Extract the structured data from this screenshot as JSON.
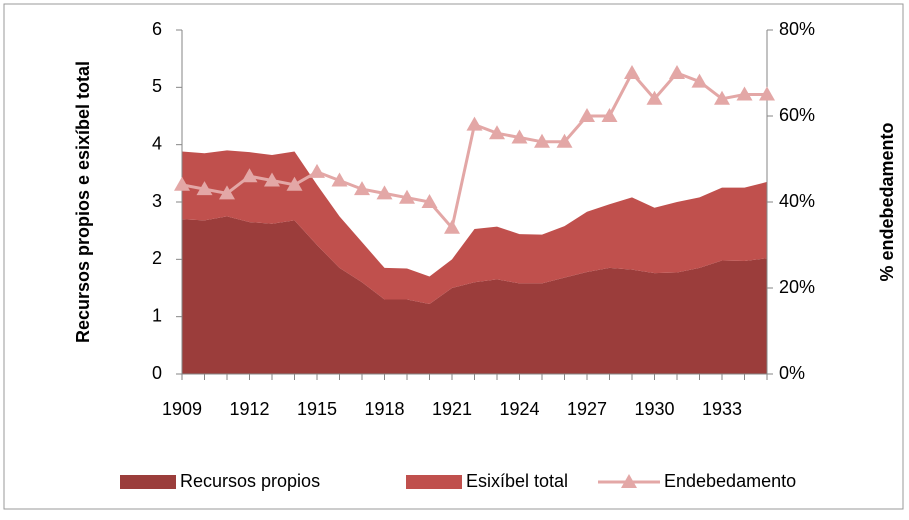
{
  "chart_data": {
    "type": "stacked_area_line",
    "x": [
      1909,
      1910,
      1911,
      1912,
      1913,
      1914,
      1915,
      1916,
      1917,
      1918,
      1919,
      1920,
      1921,
      1922,
      1923,
      1924,
      1925,
      1926,
      1927,
      1928,
      1929,
      1930,
      1931,
      1932,
      1933,
      1934,
      1935
    ],
    "xlim": [
      1909,
      1935
    ],
    "xticks": [
      1909,
      1912,
      1915,
      1918,
      1921,
      1924,
      1927,
      1930,
      1933
    ],
    "ylabel": "Recursos propios e esixíbel total",
    "y2label": "% endebedamento",
    "ylim": [
      0,
      6
    ],
    "yticks": [
      0,
      1,
      2,
      3,
      4,
      5,
      6
    ],
    "y2lim": [
      0,
      80
    ],
    "y2ticks": [
      {
        "value": 0,
        "label": "0%"
      },
      {
        "value": 20,
        "label": "20%"
      },
      {
        "value": 40,
        "label": "40%"
      },
      {
        "value": 60,
        "label": "60%"
      },
      {
        "value": 80,
        "label": "80%"
      }
    ],
    "legend": "bottom",
    "series": [
      {
        "name": "Recursos propios",
        "color": "#9b3d3b",
        "values": [
          2.7,
          2.68,
          2.75,
          2.65,
          2.62,
          2.68,
          2.25,
          1.85,
          1.6,
          1.3,
          1.3,
          1.22,
          1.5,
          1.6,
          1.65,
          1.58,
          1.58,
          1.68,
          1.78,
          1.85,
          1.82,
          1.76,
          1.77,
          1.85,
          1.98,
          1.97,
          2.02
        ]
      },
      {
        "name": "Esixíbel total",
        "color": "#c0504d",
        "values": [
          1.18,
          1.17,
          1.15,
          1.22,
          1.2,
          1.2,
          1.05,
          0.9,
          0.7,
          0.55,
          0.54,
          0.48,
          0.5,
          0.93,
          0.92,
          0.86,
          0.85,
          0.9,
          1.05,
          1.11,
          1.26,
          1.14,
          1.23,
          1.23,
          1.27,
          1.28,
          1.33
        ]
      },
      {
        "name": "Endebedamento",
        "color": "#e3a7a6",
        "axis": "y2",
        "values": [
          44,
          43,
          42,
          46,
          45,
          44,
          47,
          45,
          43,
          42,
          41,
          40,
          34,
          58,
          56,
          55,
          54,
          54,
          60,
          60,
          70,
          64,
          70,
          68,
          64,
          65,
          65
        ]
      }
    ]
  }
}
